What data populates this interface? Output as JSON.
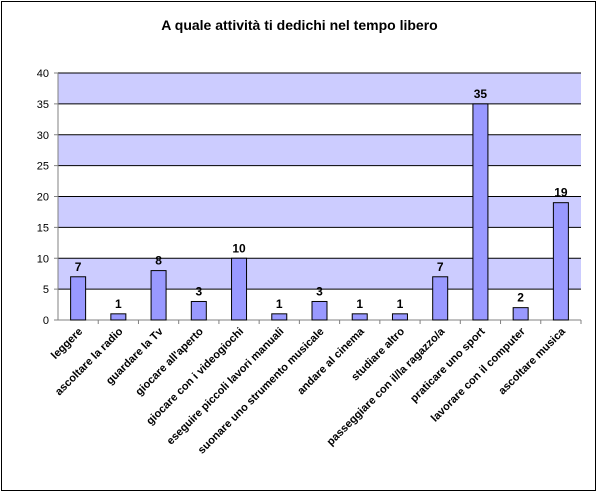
{
  "chart_data": {
    "type": "bar",
    "title": "A quale attività ti dedichi nel tempo libero",
    "xlabel": "",
    "ylabel": "",
    "ylim": [
      0,
      40
    ],
    "yticks": [
      0,
      5,
      10,
      15,
      20,
      25,
      30,
      35,
      40
    ],
    "grid": true,
    "legend": "none",
    "categories": [
      "leggere",
      "ascoltare la radio",
      "guardare la Tv",
      "giocare all'aperto",
      "giocare con i videogiochi",
      "eseguire piccoli  lavori manuali",
      "suonare uno strumento musicale",
      "andare al cinema",
      "studiare altro",
      "passeggiare con il/la ragazzo/a",
      "praticare uno sport",
      "lavorare con il computer",
      "ascoltare musica"
    ],
    "values": [
      7,
      1,
      8,
      3,
      10,
      1,
      3,
      1,
      1,
      7,
      35,
      2,
      19
    ],
    "value_labels": [
      "7",
      "1",
      "8",
      "3",
      "10",
      "1",
      "3",
      "1",
      "1",
      "7",
      "35",
      "2",
      "19"
    ],
    "colors": {
      "bar_fill": "#9999ff",
      "bar_stroke": "#000000",
      "plot_band_light": "#ffffff",
      "plot_band_dark": "#ccccff"
    }
  }
}
